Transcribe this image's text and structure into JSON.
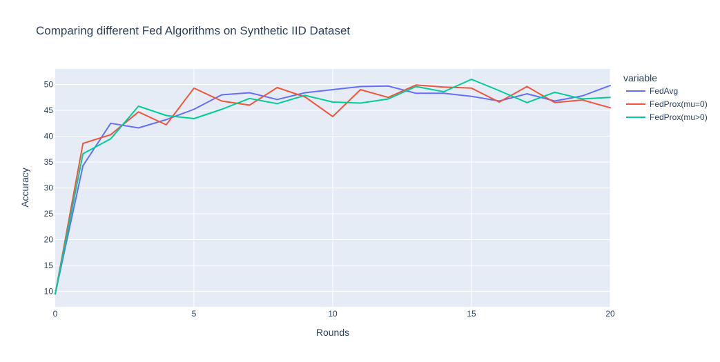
{
  "chart_data": {
    "type": "line",
    "title": "Comparing different Fed Algorithms on Synthetic IID Dataset",
    "xlabel": "Rounds",
    "ylabel": "Accuracy",
    "xlim": [
      0,
      20
    ],
    "ylim": [
      7,
      53
    ],
    "xticks": [
      0,
      5,
      10,
      15,
      20
    ],
    "yticks": [
      10,
      15,
      20,
      25,
      30,
      35,
      40,
      45,
      50
    ],
    "grid": true,
    "legend": {
      "title": "variable",
      "position": "right"
    },
    "x": [
      0,
      1,
      2,
      3,
      4,
      5,
      6,
      7,
      8,
      9,
      10,
      11,
      12,
      13,
      14,
      15,
      16,
      17,
      18,
      19,
      20
    ],
    "series": [
      {
        "name": "FedAvg",
        "color": "#636efa",
        "values": [
          9.5,
          34.3,
          42.5,
          41.6,
          43.2,
          45.2,
          48.0,
          48.4,
          47.1,
          48.4,
          49.0,
          49.6,
          49.7,
          48.3,
          48.3,
          47.7,
          46.8,
          48.2,
          46.8,
          47.8,
          49.8
        ]
      },
      {
        "name": "FedProx(mu=0)",
        "color": "#EF553B",
        "values": [
          9.5,
          38.6,
          40.3,
          44.7,
          42.2,
          49.3,
          46.8,
          46.0,
          49.4,
          47.6,
          43.8,
          49.0,
          47.5,
          49.9,
          49.5,
          49.3,
          46.6,
          49.6,
          46.5,
          47.0,
          45.5
        ]
      },
      {
        "name": "FedProx(mu>0)",
        "color": "#00cc96",
        "values": [
          9.5,
          36.6,
          39.5,
          45.8,
          44.0,
          43.4,
          45.2,
          47.3,
          46.3,
          47.9,
          46.6,
          46.4,
          47.2,
          49.6,
          48.6,
          51.0,
          48.8,
          46.5,
          48.5,
          47.2,
          47.5
        ]
      }
    ]
  }
}
